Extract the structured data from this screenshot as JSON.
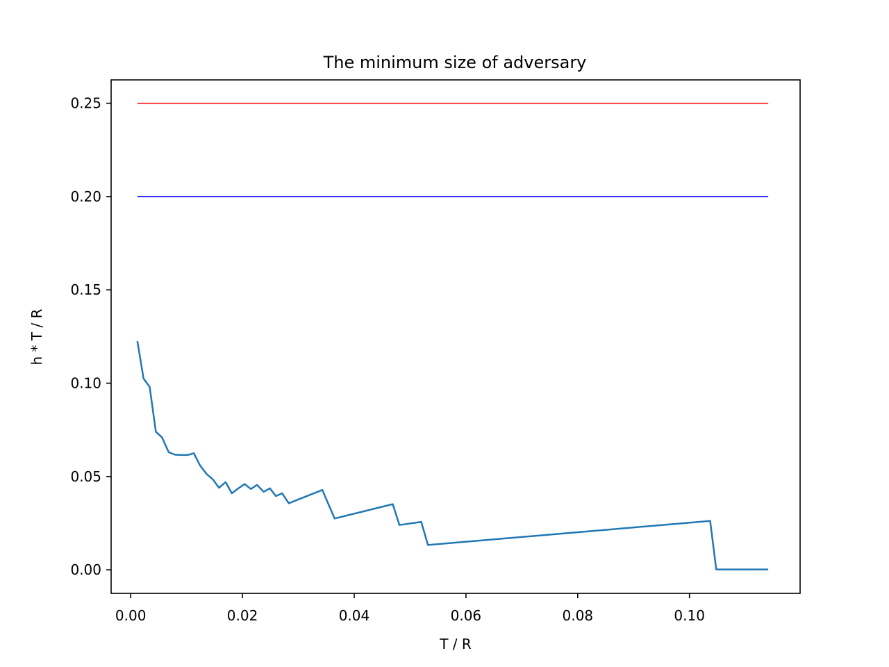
{
  "chart_data": {
    "type": "line",
    "title": "The minimum size of adversary",
    "xlabel": "T / R",
    "ylabel": "h * T / R",
    "xlim": [
      -0.0035,
      0.1198
    ],
    "ylim": [
      -0.0126,
      0.2625
    ],
    "xticks": [
      0.0,
      0.02,
      0.04,
      0.06,
      0.08,
      0.1
    ],
    "xtick_labels": [
      "0.00",
      "0.02",
      "0.04",
      "0.06",
      "0.08",
      "0.10"
    ],
    "yticks": [
      0.0,
      0.05,
      0.1,
      0.15,
      0.2,
      0.25
    ],
    "ytick_labels": [
      "0.00",
      "0.05",
      "0.10",
      "0.15",
      "0.20",
      "0.25"
    ],
    "grid": false,
    "legend": "none",
    "series": [
      {
        "color": "#ff0000",
        "stroke": 1.5,
        "x": [
          0.0012,
          0.1141
        ],
        "y": [
          0.25,
          0.25
        ]
      },
      {
        "color": "#0000ff",
        "stroke": 1.5,
        "x": [
          0.0012,
          0.1141
        ],
        "y": [
          0.2,
          0.2
        ]
      },
      {
        "color": "#1f77b4",
        "stroke": 2.5,
        "x": [
          0.0012,
          0.0023,
          0.0034,
          0.0045,
          0.0056,
          0.0068,
          0.0079,
          0.009,
          0.0102,
          0.0113,
          0.0124,
          0.0136,
          0.0147,
          0.0158,
          0.017,
          0.0181,
          0.0192,
          0.0204,
          0.0215,
          0.0226,
          0.0238,
          0.0249,
          0.026,
          0.0271,
          0.0283,
          0.0343,
          0.0365,
          0.0469,
          0.0481,
          0.052,
          0.0532,
          0.1037,
          0.1048,
          0.1141
        ],
        "y": [
          0.1225,
          0.1025,
          0.098,
          0.074,
          0.071,
          0.063,
          0.0617,
          0.0615,
          0.0615,
          0.0625,
          0.056,
          0.0513,
          0.0485,
          0.044,
          0.047,
          0.041,
          0.0435,
          0.046,
          0.0433,
          0.0455,
          0.0418,
          0.0437,
          0.0395,
          0.041,
          0.0357,
          0.0428,
          0.0275,
          0.0352,
          0.024,
          0.0257,
          0.0133,
          0.0262,
          0.0002,
          0.0002
        ]
      }
    ]
  }
}
